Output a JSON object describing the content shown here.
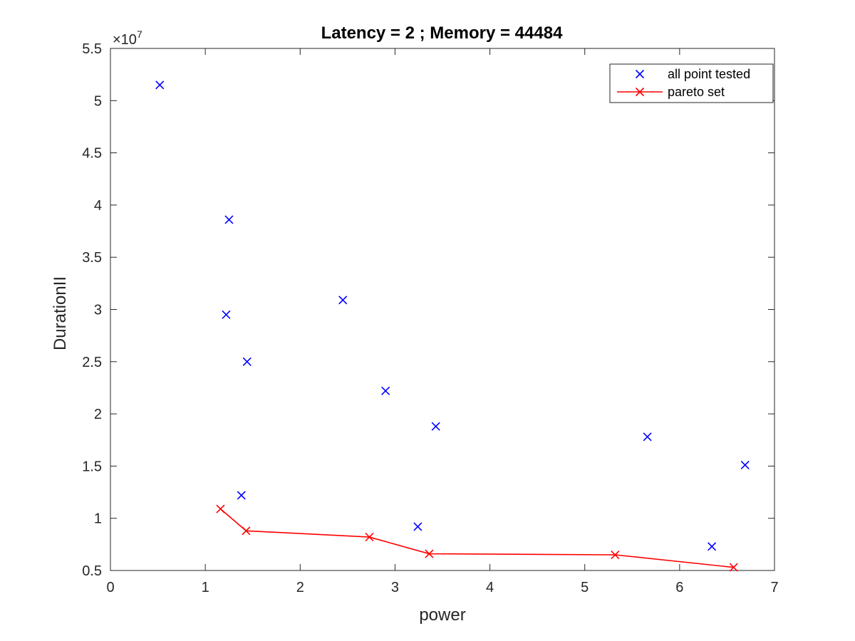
{
  "chart_data": {
    "type": "scatter",
    "title": "Latency = 2 ; Memory = 44484",
    "xlabel": "power",
    "ylabel": "DurationII",
    "xlim": [
      0,
      7
    ],
    "ylim": [
      0.5,
      5.5
    ],
    "y_exponent_label": "×10",
    "y_exponent_power": "7",
    "x_ticks": [
      "0",
      "1",
      "2",
      "3",
      "4",
      "5",
      "6",
      "7"
    ],
    "y_ticks": [
      "0.5",
      "1",
      "1.5",
      "2",
      "2.5",
      "3",
      "3.5",
      "4",
      "4.5",
      "5",
      "5.5"
    ],
    "legend_position": "top-right",
    "series": [
      {
        "name": "all point tested",
        "color": "#0000ff",
        "marker": "x",
        "line": false,
        "points": [
          [
            0.52,
            5.15
          ],
          [
            1.25,
            3.86
          ],
          [
            1.22,
            2.95
          ],
          [
            1.44,
            2.5
          ],
          [
            2.45,
            3.09
          ],
          [
            2.9,
            2.22
          ],
          [
            3.43,
            1.88
          ],
          [
            1.38,
            1.22
          ],
          [
            3.24,
            0.92
          ],
          [
            5.66,
            1.78
          ],
          [
            6.34,
            0.73
          ],
          [
            6.69,
            1.51
          ]
        ]
      },
      {
        "name": "pareto set",
        "color": "#ff0000",
        "marker": "x",
        "line": true,
        "points": [
          [
            1.16,
            1.09
          ],
          [
            1.43,
            0.88
          ],
          [
            2.73,
            0.82
          ],
          [
            3.36,
            0.66
          ],
          [
            5.32,
            0.65
          ],
          [
            6.57,
            0.53
          ]
        ]
      }
    ]
  }
}
